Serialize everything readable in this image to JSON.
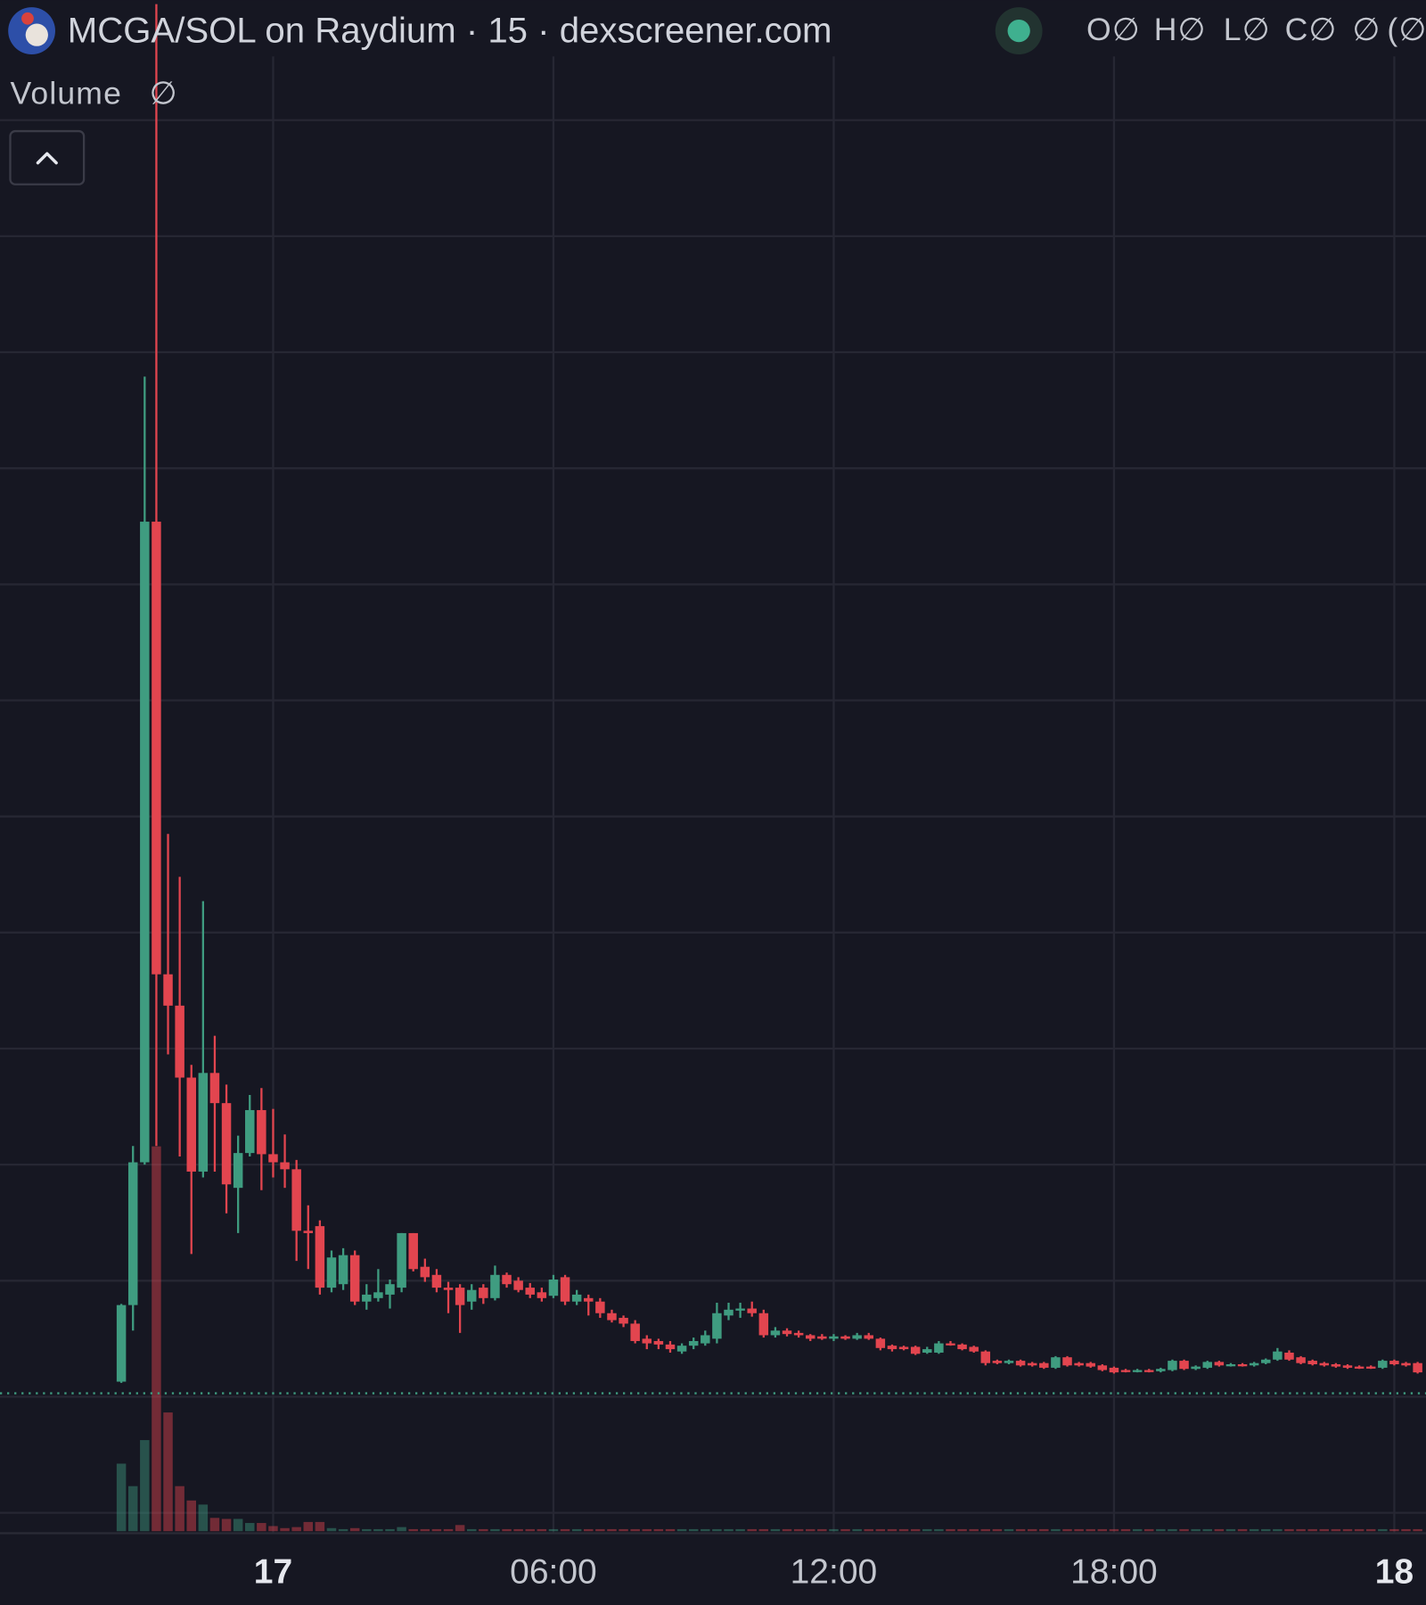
{
  "chart_data": {
    "type": "candlestick",
    "title": "MCGA/SOL on Raydium · 15 · dexscreener.com",
    "ohlc_legend": [
      "O∅",
      "H∅",
      "L∅",
      "C∅",
      "∅",
      "(∅"
    ],
    "volume_label": "Volume",
    "volume_value": "∅",
    "x": [
      -3.25,
      -3,
      -2.75,
      -2.5,
      -2.25,
      -2,
      -1.75,
      -1.5,
      -1.25,
      -1,
      -0.75,
      -0.5,
      -0.25,
      0,
      0.25,
      0.5,
      0.75,
      1,
      1.25,
      1.5,
      1.75,
      2,
      2.25,
      2.5,
      2.75,
      3,
      3.25,
      3.5,
      3.75,
      4,
      4.25,
      4.5,
      4.75,
      5,
      5.25,
      5.5,
      5.75,
      6,
      6.25,
      6.5,
      6.75,
      7,
      7.25,
      7.5,
      7.75,
      8,
      8.25,
      8.5,
      8.75,
      9,
      9.25,
      9.5,
      9.75,
      10,
      10.25,
      10.5,
      10.75,
      11,
      11.25,
      11.5,
      11.75,
      12,
      12.25,
      12.5,
      12.75,
      13,
      13.25,
      13.5,
      13.75,
      14,
      14.25,
      14.5,
      14.75,
      15,
      15.25,
      15.5,
      15.75,
      16,
      16.25,
      16.5,
      16.75,
      17,
      17.25,
      17.5,
      17.75,
      18,
      18.25,
      18.5,
      18.75,
      19,
      19.25,
      19.5,
      19.75,
      20,
      20.25,
      20.5,
      20.75,
      21,
      21.25,
      21.5,
      21.75,
      22,
      22.25,
      22.5,
      22.75,
      23,
      23.25,
      23.5,
      23.75,
      24,
      24.25,
      24.5
    ],
    "open": [
      1.13,
      1.79,
      3.02,
      8.54,
      4.64,
      4.37,
      3.75,
      2.94,
      3.79,
      3.53,
      2.8,
      3.1,
      3.47,
      3.09,
      3.02,
      2.96,
      2.43,
      2.47,
      1.94,
      1.97,
      2.22,
      1.82,
      1.85,
      1.88,
      1.94,
      2.41,
      2.12,
      2.05,
      1.94,
      1.94,
      1.82,
      1.94,
      1.85,
      2.05,
      2.0,
      1.94,
      1.9,
      1.87,
      2.03,
      1.82,
      1.85,
      1.82,
      1.72,
      1.68,
      1.63,
      1.5,
      1.48,
      1.45,
      1.39,
      1.44,
      1.46,
      1.5,
      1.7,
      1.75,
      1.76,
      1.72,
      1.53,
      1.57,
      1.55,
      1.53,
      1.52,
      1.5,
      1.52,
      1.5,
      1.53,
      1.5,
      1.44,
      1.43,
      1.43,
      1.38,
      1.38,
      1.46,
      1.45,
      1.43,
      1.39,
      1.31,
      1.29,
      1.31,
      1.29,
      1.29,
      1.25,
      1.34,
      1.29,
      1.29,
      1.27,
      1.25,
      1.23,
      1.22,
      1.23,
      1.22,
      1.23,
      1.31,
      1.24,
      1.25,
      1.3,
      1.27,
      1.28,
      1.27,
      1.29,
      1.32,
      1.38,
      1.34,
      1.31,
      1.29,
      1.28,
      1.27,
      1.26,
      1.26,
      1.25,
      1.31,
      1.29,
      1.29
    ],
    "high": [
      1.8,
      3.16,
      9.79,
      13.0,
      5.85,
      5.48,
      3.86,
      5.27,
      4.11,
      3.69,
      3.25,
      3.6,
      3.66,
      3.48,
      3.26,
      3.04,
      2.65,
      2.52,
      2.26,
      2.28,
      2.26,
      1.97,
      2.1,
      2.01,
      2.41,
      2.41,
      2.19,
      2.1,
      1.99,
      1.97,
      1.97,
      1.97,
      2.13,
      2.07,
      2.03,
      1.98,
      1.94,
      2.05,
      2.05,
      1.92,
      1.88,
      1.85,
      1.75,
      1.7,
      1.66,
      1.53,
      1.5,
      1.48,
      1.46,
      1.51,
      1.57,
      1.81,
      1.81,
      1.81,
      1.82,
      1.75,
      1.6,
      1.59,
      1.57,
      1.54,
      1.54,
      1.54,
      1.53,
      1.55,
      1.55,
      1.51,
      1.45,
      1.44,
      1.44,
      1.43,
      1.48,
      1.48,
      1.46,
      1.44,
      1.4,
      1.32,
      1.32,
      1.32,
      1.3,
      1.3,
      1.35,
      1.35,
      1.3,
      1.3,
      1.28,
      1.26,
      1.24,
      1.24,
      1.24,
      1.25,
      1.32,
      1.32,
      1.27,
      1.31,
      1.31,
      1.29,
      1.29,
      1.3,
      1.33,
      1.42,
      1.4,
      1.35,
      1.32,
      1.3,
      1.29,
      1.28,
      1.27,
      1.27,
      1.32,
      1.32,
      1.3,
      1.3
    ],
    "low": [
      1.12,
      1.57,
      3.0,
      3.16,
      3.95,
      3.07,
      2.23,
      2.89,
      2.94,
      2.58,
      2.41,
      3.07,
      2.78,
      2.89,
      2.8,
      2.17,
      2.1,
      1.88,
      1.9,
      1.92,
      1.79,
      1.75,
      1.82,
      1.76,
      1.9,
      2.08,
      1.99,
      1.9,
      1.72,
      1.55,
      1.75,
      1.8,
      1.83,
      1.94,
      1.9,
      1.85,
      1.82,
      1.85,
      1.79,
      1.79,
      1.7,
      1.68,
      1.64,
      1.6,
      1.46,
      1.41,
      1.41,
      1.38,
      1.37,
      1.41,
      1.44,
      1.46,
      1.66,
      1.68,
      1.69,
      1.51,
      1.51,
      1.52,
      1.51,
      1.48,
      1.49,
      1.48,
      1.49,
      1.49,
      1.49,
      1.4,
      1.39,
      1.4,
      1.36,
      1.37,
      1.37,
      1.44,
      1.4,
      1.38,
      1.27,
      1.28,
      1.28,
      1.26,
      1.26,
      1.24,
      1.24,
      1.26,
      1.26,
      1.25,
      1.22,
      1.2,
      1.21,
      1.21,
      1.21,
      1.21,
      1.22,
      1.23,
      1.23,
      1.24,
      1.26,
      1.26,
      1.26,
      1.26,
      1.28,
      1.31,
      1.31,
      1.28,
      1.27,
      1.26,
      1.25,
      1.24,
      1.24,
      1.24,
      1.24,
      1.27,
      1.26,
      1.2
    ],
    "close": [
      1.79,
      3.02,
      8.54,
      4.64,
      4.37,
      3.75,
      2.94,
      3.79,
      3.53,
      2.83,
      3.1,
      3.47,
      3.09,
      3.02,
      2.96,
      2.43,
      2.41,
      1.94,
      2.2,
      2.22,
      1.82,
      1.88,
      1.9,
      1.97,
      2.41,
      2.1,
      2.03,
      1.94,
      1.92,
      1.79,
      1.92,
      1.85,
      2.05,
      1.97,
      1.92,
      1.88,
      1.85,
      2.01,
      1.82,
      1.88,
      1.82,
      1.72,
      1.66,
      1.63,
      1.48,
      1.46,
      1.45,
      1.41,
      1.44,
      1.48,
      1.53,
      1.72,
      1.75,
      1.76,
      1.72,
      1.53,
      1.57,
      1.54,
      1.53,
      1.5,
      1.5,
      1.52,
      1.5,
      1.53,
      1.5,
      1.42,
      1.41,
      1.41,
      1.37,
      1.41,
      1.46,
      1.45,
      1.41,
      1.39,
      1.29,
      1.29,
      1.31,
      1.27,
      1.27,
      1.25,
      1.34,
      1.27,
      1.27,
      1.26,
      1.23,
      1.21,
      1.22,
      1.23,
      1.22,
      1.24,
      1.31,
      1.24,
      1.26,
      1.3,
      1.27,
      1.28,
      1.27,
      1.29,
      1.32,
      1.39,
      1.32,
      1.29,
      1.28,
      1.27,
      1.26,
      1.25,
      1.25,
      1.25,
      1.31,
      1.28,
      1.27,
      1.21
    ],
    "volume": [
      6.6,
      4.4,
      8.9,
      37.6,
      11.6,
      4.4,
      3.0,
      2.6,
      1.3,
      1.2,
      1.2,
      0.8,
      0.8,
      0.5,
      0.3,
      0.4,
      0.9,
      0.9,
      0.3,
      0.2,
      0.3,
      0.2,
      0.2,
      0.2,
      0.4,
      0.2,
      0.2,
      0.2,
      0.2,
      0.6,
      0.2,
      0.2,
      0.2,
      0.2,
      0.2,
      0.2,
      0.2,
      0.2,
      0.2,
      0.2,
      0.2,
      0.2,
      0.2,
      0.2,
      0.2,
      0.2,
      0.2,
      0.2,
      0.2,
      0.2,
      0.2,
      0.2,
      0.2,
      0.2,
      0.2,
      0.2,
      0.2,
      0.2,
      0.2,
      0.2,
      0.2,
      0.2,
      0.2,
      0.2,
      0.2,
      0.2,
      0.2,
      0.2,
      0.2,
      0.2,
      0.2,
      0.2,
      0.2,
      0.2,
      0.2,
      0.2,
      0.2,
      0.2,
      0.2,
      0.2,
      0.2,
      0.2,
      0.2,
      0.2,
      0.2,
      0.2,
      0.2,
      0.2,
      0.2,
      0.2,
      0.2,
      0.2,
      0.2,
      0.2,
      0.2,
      0.2,
      0.2,
      0.2,
      0.2,
      0.2,
      0.2,
      0.2,
      0.2,
      0.2,
      0.2,
      0.2,
      0.2,
      0.2,
      0.2,
      0.2,
      0.2,
      0.2
    ],
    "xlim": [
      -5.847,
      24.679
    ],
    "xticks": [
      {
        "value": 0,
        "label": "17"
      },
      {
        "value": 6,
        "label": "06:00"
      },
      {
        "value": 12,
        "label": "12:00"
      },
      {
        "value": 18,
        "label": "18:00"
      },
      {
        "value": 24,
        "label": "18"
      }
    ],
    "ylim": [
      -0.176,
      13.034
    ],
    "y_grid": [
      0,
      1,
      2,
      3,
      4,
      5,
      6,
      7,
      8,
      9,
      10,
      11,
      12
    ],
    "vlim": [
      0,
      40
    ],
    "price_line": 1.03,
    "grid": true,
    "up_color": "#3f9c80",
    "down_color": "#e2454f"
  }
}
